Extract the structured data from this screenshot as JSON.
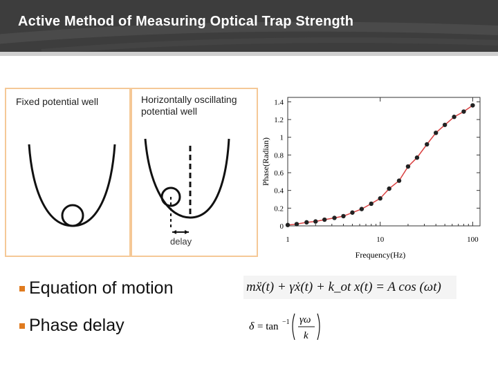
{
  "slide": {
    "title": "Active Method of Measuring Optical Trap Strength"
  },
  "panels": {
    "fixed_label": "Fixed potential well",
    "oscillating_label": "Horizontally oscillating\n potential well",
    "delay_label": "delay"
  },
  "bullets": [
    {
      "label": "Equation of motion"
    },
    {
      "label": "Phase delay"
    }
  ],
  "equations": {
    "motion": "mẍ(t) + γẋ(t) + k_ot x(t) = A cos (ωt)",
    "phase": "δ = tan⁻¹(γω / k)"
  },
  "colors": {
    "header": "#3d3d3d",
    "panel_border": "#f5c896",
    "bullet": "#e07b1f",
    "curve": "#d94040",
    "points": "#222222"
  },
  "chart_data": {
    "type": "line",
    "xlabel": "Frequency(Hz)",
    "ylabel": "Phase(Radian)",
    "x_scale": "log",
    "xlim": [
      1,
      120
    ],
    "ylim": [
      0,
      1.45
    ],
    "x_ticks": [
      1,
      10,
      100
    ],
    "y_ticks": [
      0,
      0.2,
      0.4,
      0.6,
      0.8,
      1,
      1.2,
      1.4
    ],
    "grid": false,
    "series": [
      {
        "x": [
          1.0,
          1.25,
          1.6,
          2.0,
          2.5,
          3.2,
          4.0,
          5.0,
          6.3,
          8.0,
          10.0,
          12.5,
          16.0,
          20.0,
          25.0,
          32.0,
          40.0,
          50.0,
          63.0,
          80.0,
          100.0
        ],
        "y": [
          0.01,
          0.02,
          0.04,
          0.05,
          0.07,
          0.09,
          0.11,
          0.15,
          0.19,
          0.25,
          0.31,
          0.42,
          0.51,
          0.67,
          0.77,
          0.92,
          1.05,
          1.14,
          1.23,
          1.29,
          1.36
        ]
      }
    ]
  }
}
